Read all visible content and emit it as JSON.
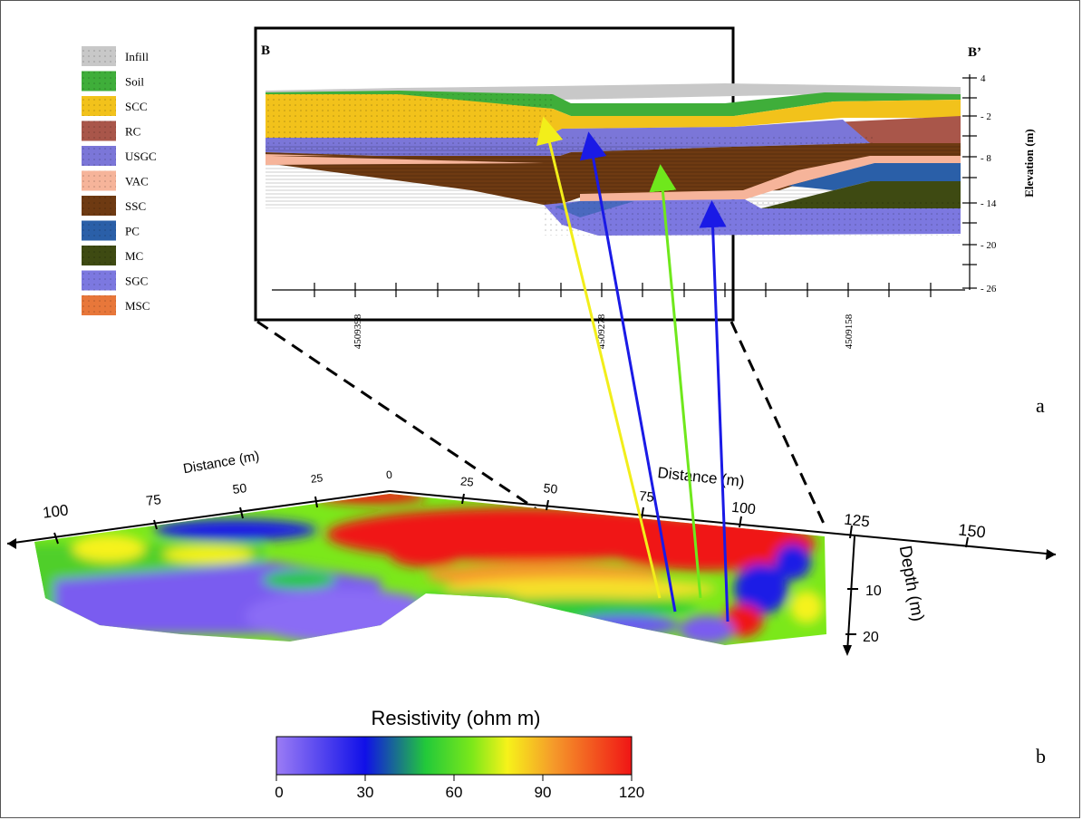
{
  "legend": {
    "items": [
      {
        "label": "Infill",
        "color": "#c8c8c8"
      },
      {
        "label": "Soil",
        "color": "#3fae3a"
      },
      {
        "label": "SCC",
        "color": "#f2c21b"
      },
      {
        "label": "RC",
        "color": "#a9564a"
      },
      {
        "label": "USGC",
        "color": "#7b76d8"
      },
      {
        "label": "VAC",
        "color": "#f6b49a"
      },
      {
        "label": "SSC",
        "color": "#6e3a12"
      },
      {
        "label": "PC",
        "color": "#2a5fa8"
      },
      {
        "label": "MC",
        "color": "#3e4a12"
      },
      {
        "label": "SGC",
        "color": "#7c78e0"
      },
      {
        "label": "MSC",
        "color": "#e8773a"
      }
    ]
  },
  "section": {
    "left_label": "B",
    "right_label": "B’",
    "elevation_title": "Elevation (m)",
    "elevation_ticks": [
      "4",
      "- 2",
      "- 8",
      "- 14",
      "- 20",
      "- 26"
    ],
    "northing_labels": [
      "4509398",
      "4509278",
      "4509158"
    ],
    "panel_label": "a"
  },
  "block": {
    "distance_label_left": "Distance (m)",
    "distance_label_right": "Distance (m)",
    "depth_label": "Depth (m)",
    "left_ticks": [
      "100",
      "75",
      "50",
      "25",
      "0"
    ],
    "right_ticks": [
      "25",
      "50",
      "75",
      "100",
      "125",
      "150"
    ],
    "depth_ticks": [
      "10",
      "20"
    ],
    "panel_label": "b"
  },
  "colorbar": {
    "title": "Resistivity (ohm m)",
    "ticks": [
      "0",
      "30",
      "60",
      "90",
      "120"
    ],
    "colors": {
      "c0": "#9b7cf5",
      "c1": "#1010e8",
      "c2": "#22c93a",
      "c3": "#7be81a",
      "c4": "#f6f21a",
      "c5": "#f59a2a",
      "c6": "#f01515"
    }
  },
  "arrows": {
    "yellow": "#f2ee1a",
    "blue": "#1a1ae6",
    "green": "#6fe81c"
  }
}
